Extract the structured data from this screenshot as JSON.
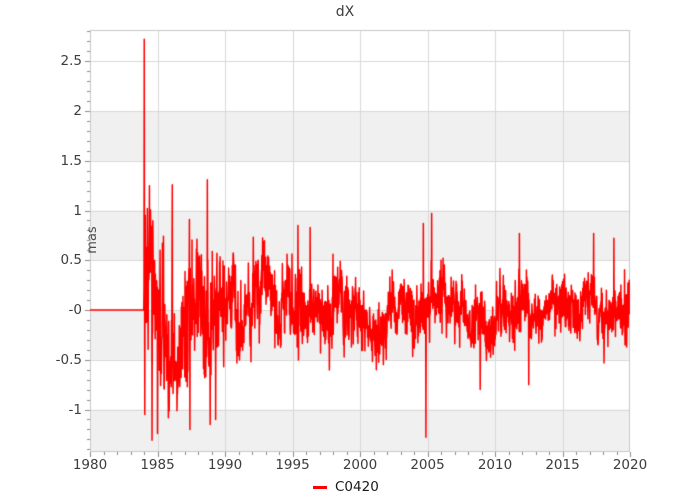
{
  "figure": {
    "background": "#ffffff"
  },
  "chart_data": {
    "type": "line",
    "title": "dX",
    "xlabel": "",
    "ylabel": "mas",
    "x_range": [
      1980,
      2020
    ],
    "y_view": [
      -1.427,
      2.814
    ],
    "x_ticks": {
      "major": [
        {
          "value": 1980,
          "label": "1980"
        },
        {
          "value": 1985,
          "label": "1985"
        },
        {
          "value": 1990,
          "label": "1990"
        },
        {
          "value": 1995,
          "label": "1995"
        },
        {
          "value": 2000,
          "label": "2000"
        },
        {
          "value": 2005,
          "label": "2005"
        },
        {
          "value": 2010,
          "label": "2010"
        },
        {
          "value": 2015,
          "label": "2015"
        },
        {
          "value": 2020,
          "label": "2020"
        }
      ],
      "minor_step_years": 1
    },
    "y_ticks": {
      "major": [
        {
          "value": -1.0,
          "label": "-1"
        },
        {
          "value": -0.5,
          "label": "-0.5"
        },
        {
          "value": 0.0,
          "label": "-0"
        },
        {
          "value": 0.5,
          "label": "0.5"
        },
        {
          "value": 1.0,
          "label": "1"
        },
        {
          "value": 1.5,
          "label": "1.5"
        },
        {
          "value": 2.0,
          "label": "2"
        },
        {
          "value": 2.5,
          "label": "2.5"
        }
      ],
      "minor_step": 0.1
    },
    "grid": true,
    "shaded_bands": [
      [
        1.5,
        2.0
      ],
      [
        0.5,
        1.0
      ],
      [
        -0.5,
        0.0
      ],
      [
        -1.427,
        -1.0
      ]
    ],
    "legend": {
      "label": "C0420",
      "position": "bottom-center"
    },
    "series": [
      {
        "name": "C0420",
        "color": "#ff0000",
        "line_width": 1.5,
        "baseline_value": 0,
        "flat_from": 1980.0,
        "flat_until": 1984.0,
        "end": 2020.0,
        "samples_per_year": 52,
        "noise_seed": 7,
        "ar_phi": 0.95,
        "slow_weight": 0.65,
        "fast_weight": 0.75,
        "soft_clip": 1.32,
        "amplitude_envelope": [
          [
            1984,
            0.48
          ],
          [
            1985,
            0.5
          ],
          [
            1986,
            0.44
          ],
          [
            1987,
            0.42
          ],
          [
            1988,
            0.44
          ],
          [
            1989,
            0.38
          ],
          [
            1990,
            0.3
          ],
          [
            1992,
            0.27
          ],
          [
            1995,
            0.23
          ],
          [
            1998,
            0.21
          ],
          [
            2002,
            0.19
          ],
          [
            2006,
            0.18
          ],
          [
            2010,
            0.18
          ],
          [
            2015,
            0.17
          ],
          [
            2020,
            0.17
          ]
        ],
        "notable_points": [
          [
            1984.02,
            2.72
          ],
          [
            1984.06,
            -1.05
          ],
          [
            1984.1,
            0.95
          ],
          [
            1984.25,
            1.02
          ],
          [
            1984.4,
            1.25
          ],
          [
            1984.6,
            -1.31
          ],
          [
            1985.0,
            -1.24
          ],
          [
            1986.1,
            1.26
          ],
          [
            1987.4,
            -1.2
          ],
          [
            1988.7,
            1.31
          ],
          [
            1988.9,
            -1.15
          ],
          [
            1989.3,
            -1.1
          ],
          [
            1992.1,
            0.73
          ],
          [
            1995.4,
            0.85
          ],
          [
            1996.3,
            0.83
          ],
          [
            2004.7,
            0.87
          ],
          [
            2004.88,
            -1.28
          ],
          [
            2005.3,
            0.97
          ],
          [
            2008.9,
            -0.8
          ],
          [
            2011.8,
            0.77
          ],
          [
            2012.5,
            -0.75
          ],
          [
            2017.3,
            0.77
          ],
          [
            2018.8,
            0.72
          ],
          [
            2019.95,
            0.3
          ]
        ]
      }
    ],
    "style": {
      "band_color": "#f0f0f0",
      "grid_color": "#d9d9d9",
      "border_color": "#c8c8c8",
      "tick_color": "#8c8c8c",
      "label_color": "#3d3d3d"
    }
  }
}
